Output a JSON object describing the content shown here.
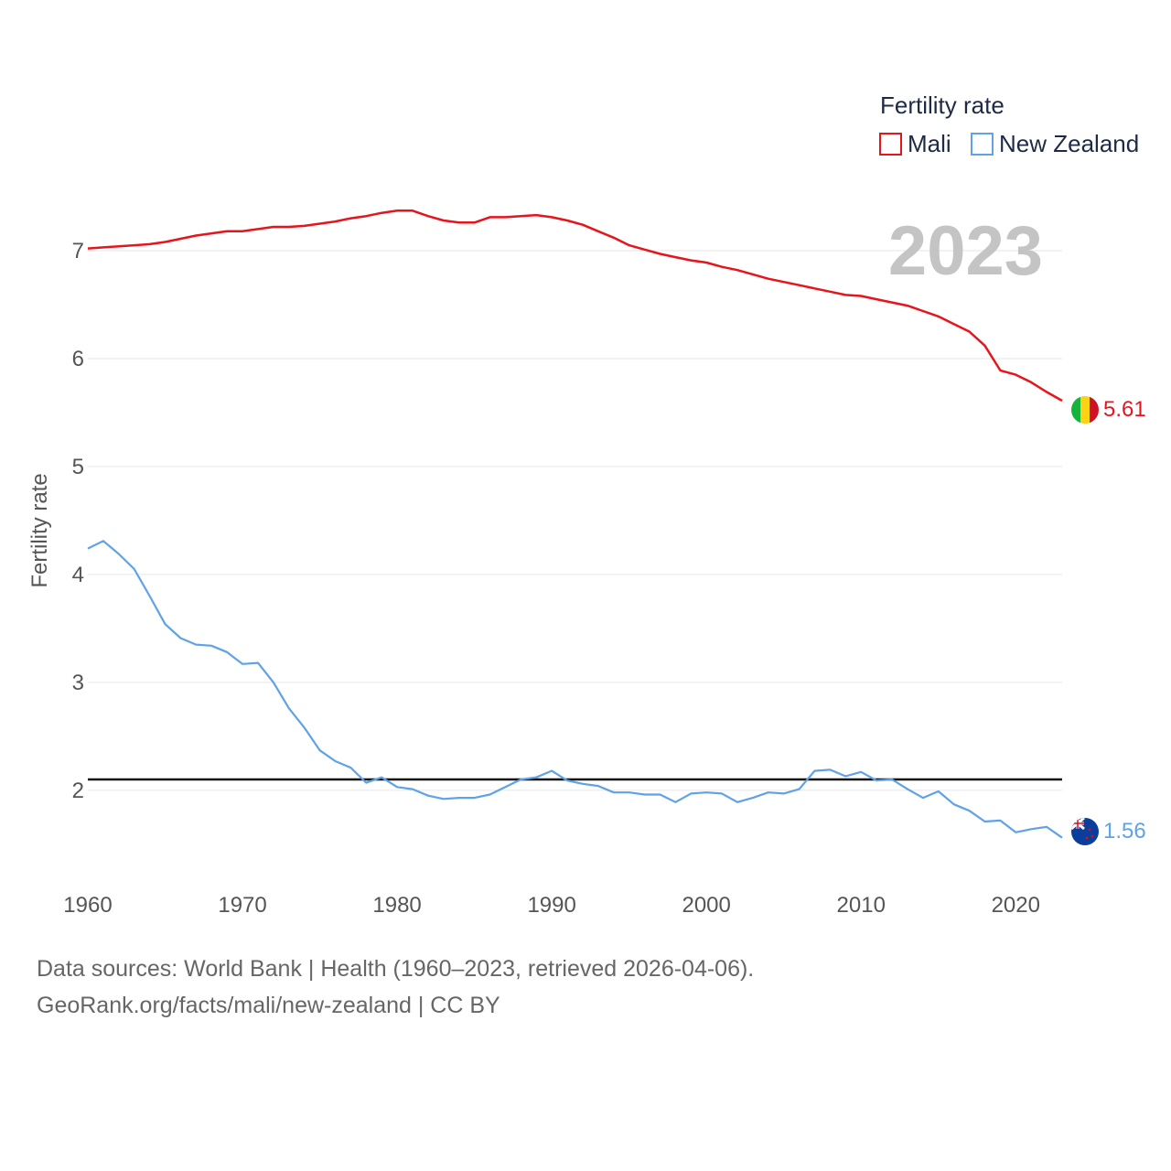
{
  "chart_data": {
    "type": "line",
    "title": "Fertility rate",
    "ylabel": "Fertility rate",
    "xlabel": "",
    "current_year": "2023",
    "xlim": [
      1960,
      2023
    ],
    "ylim": [
      1.1,
      7.5
    ],
    "grid": true,
    "legend": "top-right",
    "yticks": [
      2,
      3,
      4,
      5,
      6,
      7
    ],
    "xticks": [
      1960,
      1970,
      1980,
      1990,
      2000,
      2010,
      2020
    ],
    "reference_line": 2.1,
    "x": [
      1960,
      1961,
      1962,
      1963,
      1964,
      1965,
      1966,
      1967,
      1968,
      1969,
      1970,
      1971,
      1972,
      1973,
      1974,
      1975,
      1976,
      1977,
      1978,
      1979,
      1980,
      1981,
      1982,
      1983,
      1984,
      1985,
      1986,
      1987,
      1988,
      1989,
      1990,
      1991,
      1992,
      1993,
      1994,
      1995,
      1996,
      1997,
      1998,
      1999,
      2000,
      2001,
      2002,
      2003,
      2004,
      2005,
      2006,
      2007,
      2008,
      2009,
      2010,
      2011,
      2012,
      2013,
      2014,
      2015,
      2016,
      2017,
      2018,
      2019,
      2020,
      2021,
      2022,
      2023
    ],
    "series": [
      {
        "name": "Mali",
        "color": "#e8141c",
        "end_label": "5.61",
        "flag": "mali-flag-icon",
        "values": [
          7.02,
          7.03,
          7.04,
          7.05,
          7.06,
          7.08,
          7.11,
          7.14,
          7.16,
          7.18,
          7.18,
          7.2,
          7.22,
          7.22,
          7.23,
          7.25,
          7.27,
          7.3,
          7.32,
          7.35,
          7.37,
          7.37,
          7.32,
          7.28,
          7.26,
          7.26,
          7.31,
          7.31,
          7.32,
          7.33,
          7.31,
          7.28,
          7.24,
          7.18,
          7.12,
          7.05,
          7.01,
          6.97,
          6.94,
          6.91,
          6.89,
          6.85,
          6.82,
          6.78,
          6.74,
          6.71,
          6.68,
          6.65,
          6.62,
          6.59,
          6.58,
          6.55,
          6.52,
          6.49,
          6.44,
          6.39,
          6.32,
          6.25,
          6.12,
          5.89,
          5.85,
          5.78,
          5.69,
          5.61
        ]
      },
      {
        "name": "New Zealand",
        "color": "#5fa2e6",
        "end_label": "1.56",
        "flag": "new-zealand-flag-icon",
        "values": [
          4.24,
          4.31,
          4.19,
          4.05,
          3.8,
          3.54,
          3.41,
          3.35,
          3.34,
          3.28,
          3.17,
          3.18,
          3.0,
          2.76,
          2.58,
          2.37,
          2.27,
          2.21,
          2.07,
          2.12,
          2.03,
          2.01,
          1.95,
          1.92,
          1.93,
          1.93,
          1.96,
          2.03,
          2.1,
          2.12,
          2.18,
          2.09,
          2.06,
          2.04,
          1.98,
          1.98,
          1.96,
          1.96,
          1.89,
          1.97,
          1.98,
          1.97,
          1.89,
          1.93,
          1.98,
          1.97,
          2.01,
          2.18,
          2.19,
          2.13,
          2.17,
          2.09,
          2.1,
          2.01,
          1.93,
          1.99,
          1.87,
          1.81,
          1.71,
          1.72,
          1.61,
          1.64,
          1.66,
          1.56
        ]
      }
    ]
  },
  "footer": {
    "line1": "Data sources: World Bank | Health (1960–2023, retrieved 2026-04-06).",
    "line2": "GeoRank.org/facts/mali/new-zealand | CC BY"
  }
}
